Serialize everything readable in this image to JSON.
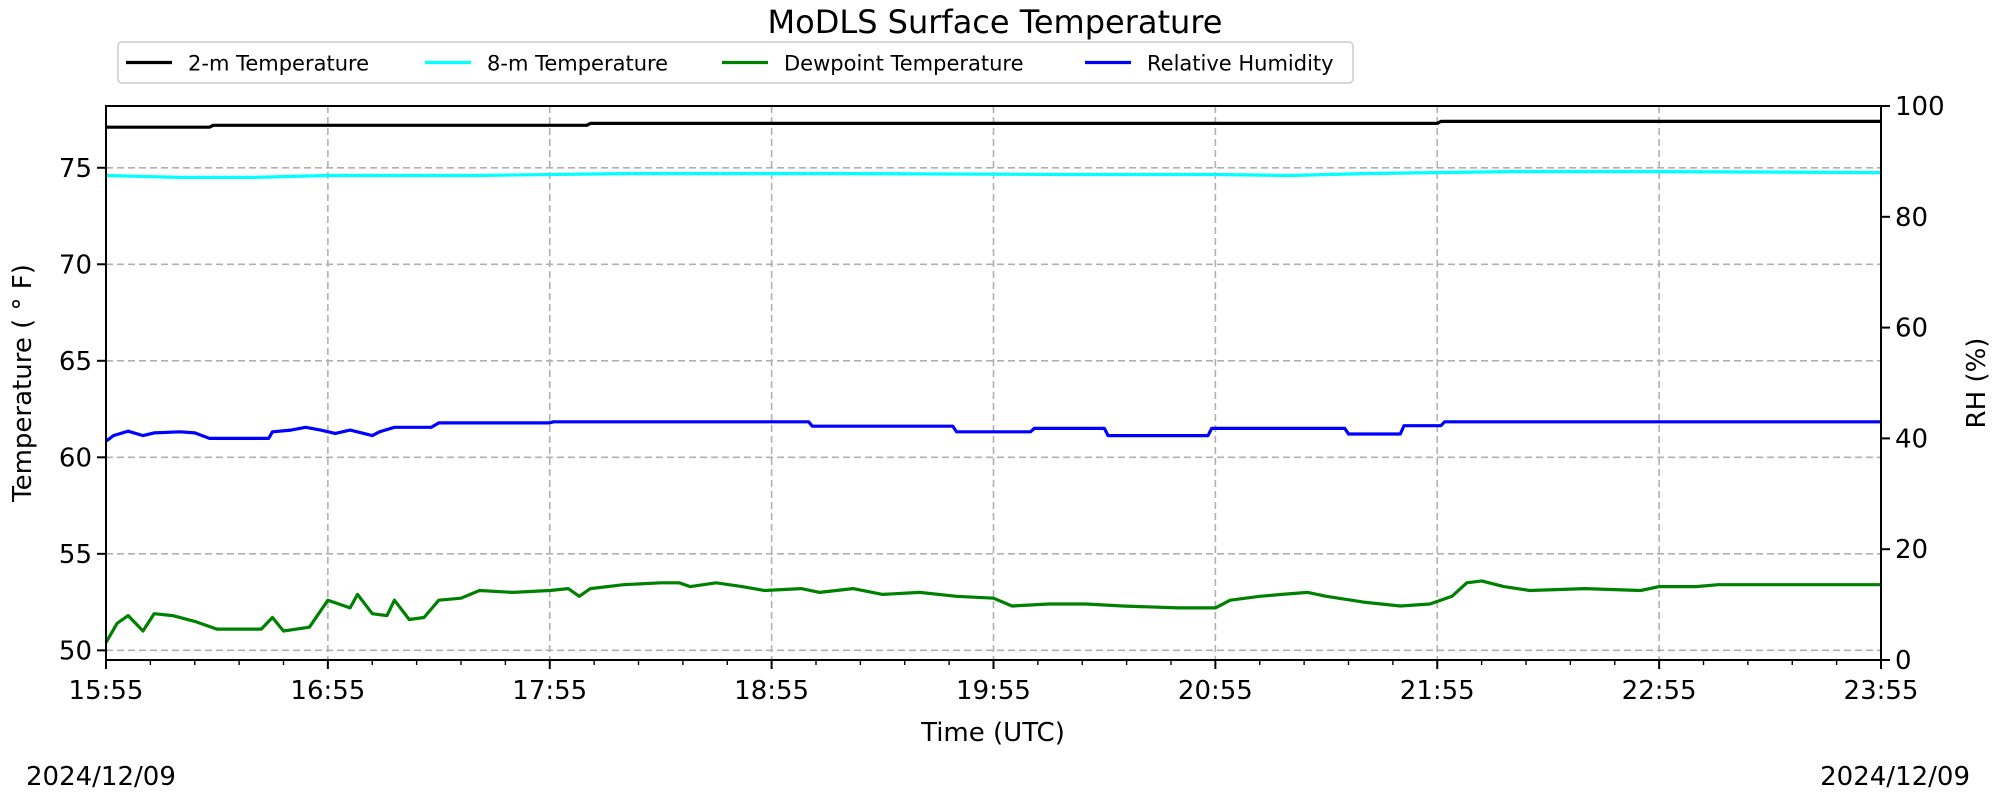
{
  "chart_data": {
    "type": "line",
    "title": "MoDLS Surface Temperature",
    "xlabel": "Time (UTC)",
    "ylabel": "Temperature ($^\\circ$F)",
    "ylabel_display": "Temperature ( ° F)",
    "y2label": "RH (%)",
    "x_ticks": [
      "15:55",
      "16:55",
      "17:55",
      "18:55",
      "19:55",
      "20:55",
      "21:55",
      "22:55",
      "23:55"
    ],
    "xlim_minutes_from_start": [
      0,
      480
    ],
    "ylim": [
      49.5,
      78.2
    ],
    "y_ticks": [
      50,
      55,
      60,
      65,
      70,
      75
    ],
    "y2lim": [
      0,
      100
    ],
    "y2_ticks": [
      0,
      20,
      40,
      60,
      80,
      100
    ],
    "grid": true,
    "legend_position": "top-left, above plot",
    "start_date": "2024/12/09",
    "end_date": "2024/12/09",
    "series": [
      {
        "name": "2-m Temperature",
        "axis": "left",
        "color": "#000000",
        "points": [
          [
            0,
            77.1
          ],
          [
            28,
            77.1
          ],
          [
            29,
            77.2
          ],
          [
            130,
            77.2
          ],
          [
            131,
            77.3
          ],
          [
            360,
            77.3
          ],
          [
            361,
            77.4
          ],
          [
            480,
            77.4
          ]
        ]
      },
      {
        "name": "8-m Temperature",
        "axis": "left",
        "color": "#00ffff",
        "points": [
          [
            0,
            74.6
          ],
          [
            20,
            74.5
          ],
          [
            40,
            74.5
          ],
          [
            60,
            74.6
          ],
          [
            100,
            74.6
          ],
          [
            140,
            74.7
          ],
          [
            200,
            74.7
          ],
          [
            260,
            74.65
          ],
          [
            300,
            74.65
          ],
          [
            320,
            74.6
          ],
          [
            340,
            74.7
          ],
          [
            380,
            74.8
          ],
          [
            420,
            74.8
          ],
          [
            480,
            74.75
          ]
        ]
      },
      {
        "name": "Dewpoint Temperature",
        "axis": "left",
        "color": "#008000",
        "points": [
          [
            0,
            50.4
          ],
          [
            3,
            51.4
          ],
          [
            6,
            51.8
          ],
          [
            10,
            51.0
          ],
          [
            13,
            51.9
          ],
          [
            18,
            51.8
          ],
          [
            24,
            51.5
          ],
          [
            30,
            51.1
          ],
          [
            42,
            51.1
          ],
          [
            45,
            51.7
          ],
          [
            48,
            51.0
          ],
          [
            55,
            51.2
          ],
          [
            60,
            52.6
          ],
          [
            66,
            52.2
          ],
          [
            68,
            52.9
          ],
          [
            72,
            51.9
          ],
          [
            76,
            51.8
          ],
          [
            78,
            52.6
          ],
          [
            82,
            51.6
          ],
          [
            86,
            51.7
          ],
          [
            90,
            52.6
          ],
          [
            96,
            52.7
          ],
          [
            101,
            53.1
          ],
          [
            110,
            53.0
          ],
          [
            120,
            53.1
          ],
          [
            125,
            53.2
          ],
          [
            128,
            52.8
          ],
          [
            131,
            53.2
          ],
          [
            140,
            53.4
          ],
          [
            150,
            53.5
          ],
          [
            155,
            53.5
          ],
          [
            158,
            53.3
          ],
          [
            165,
            53.5
          ],
          [
            172,
            53.3
          ],
          [
            178,
            53.1
          ],
          [
            188,
            53.2
          ],
          [
            193,
            53.0
          ],
          [
            202,
            53.2
          ],
          [
            210,
            52.9
          ],
          [
            220,
            53.0
          ],
          [
            230,
            52.8
          ],
          [
            240,
            52.7
          ],
          [
            245,
            52.3
          ],
          [
            255,
            52.4
          ],
          [
            265,
            52.4
          ],
          [
            275,
            52.3
          ],
          [
            290,
            52.2
          ],
          [
            300,
            52.2
          ],
          [
            304,
            52.6
          ],
          [
            312,
            52.8
          ],
          [
            318,
            52.9
          ],
          [
            325,
            53.0
          ],
          [
            330,
            52.8
          ],
          [
            340,
            52.5
          ],
          [
            350,
            52.3
          ],
          [
            358,
            52.4
          ],
          [
            364,
            52.8
          ],
          [
            368,
            53.5
          ],
          [
            372,
            53.6
          ],
          [
            378,
            53.3
          ],
          [
            385,
            53.1
          ],
          [
            400,
            53.2
          ],
          [
            415,
            53.1
          ],
          [
            420,
            53.3
          ],
          [
            430,
            53.3
          ],
          [
            436,
            53.4
          ],
          [
            450,
            53.4
          ],
          [
            480,
            53.4
          ]
        ]
      },
      {
        "name": "Relative Humidity",
        "axis": "right",
        "color": "#0000ff",
        "points": [
          [
            0,
            39.5
          ],
          [
            2,
            40.5
          ],
          [
            6,
            41.3
          ],
          [
            10,
            40.5
          ],
          [
            13,
            41.0
          ],
          [
            20,
            41.2
          ],
          [
            24,
            41.0
          ],
          [
            28,
            40.0
          ],
          [
            44,
            40.0
          ],
          [
            45,
            41.2
          ],
          [
            50,
            41.5
          ],
          [
            54,
            42.0
          ],
          [
            58,
            41.5
          ],
          [
            62,
            40.9
          ],
          [
            66,
            41.5
          ],
          [
            72,
            40.5
          ],
          [
            74,
            41.2
          ],
          [
            78,
            42.0
          ],
          [
            88,
            42.0
          ],
          [
            90,
            42.8
          ],
          [
            120,
            42.8
          ],
          [
            121,
            43.0
          ],
          [
            190,
            43.0
          ],
          [
            191,
            42.2
          ],
          [
            229,
            42.2
          ],
          [
            230,
            41.2
          ],
          [
            250,
            41.2
          ],
          [
            251,
            41.8
          ],
          [
            270,
            41.8
          ],
          [
            271,
            40.5
          ],
          [
            298,
            40.5
          ],
          [
            299,
            41.8
          ],
          [
            335,
            41.8
          ],
          [
            336,
            40.8
          ],
          [
            350,
            40.8
          ],
          [
            351,
            42.3
          ],
          [
            361,
            42.3
          ],
          [
            362,
            43.0
          ],
          [
            480,
            43.0
          ]
        ]
      }
    ]
  }
}
